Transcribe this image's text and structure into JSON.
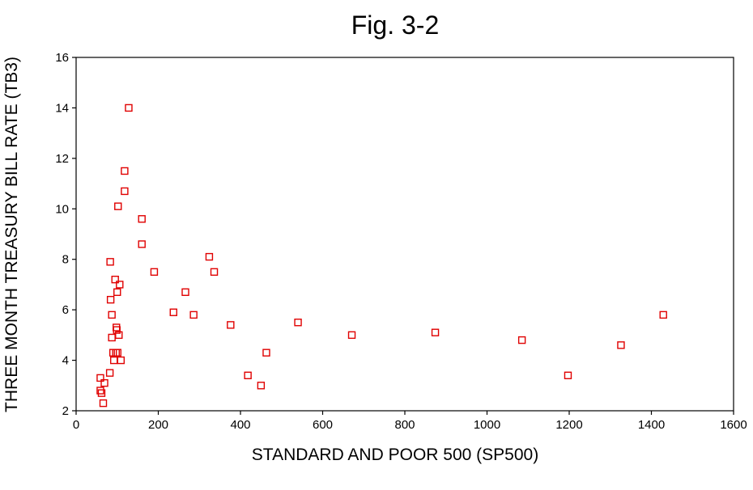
{
  "chart_data": {
    "type": "scatter",
    "title": "Fig. 3-2",
    "xlabel": "STANDARD AND POOR 500 (SP500)",
    "ylabel": "THREE MONTH TREASURY BILL RATE (TB3)",
    "xlim": [
      0,
      1600
    ],
    "ylim": [
      2,
      16
    ],
    "xticks": [
      0,
      200,
      400,
      600,
      800,
      1000,
      1200,
      1400,
      1600
    ],
    "yticks": [
      2,
      4,
      6,
      8,
      10,
      12,
      14,
      16
    ],
    "marker": "open-square",
    "marker_color": "#e00000",
    "grid": false,
    "series": [
      {
        "points": [
          [
            59,
            3.3
          ],
          [
            59,
            2.8
          ],
          [
            62,
            2.7
          ],
          [
            66,
            2.3
          ],
          [
            69,
            3.1
          ],
          [
            82,
            3.5
          ],
          [
            83,
            7.9
          ],
          [
            84,
            6.4
          ],
          [
            87,
            5.8
          ],
          [
            87,
            4.9
          ],
          [
            90,
            4.3
          ],
          [
            92,
            4.0
          ],
          [
            95,
            7.2
          ],
          [
            97,
            4.3
          ],
          [
            98,
            5.3
          ],
          [
            99,
            5.2
          ],
          [
            100,
            6.7
          ],
          [
            101,
            4.3
          ],
          [
            102,
            10.1
          ],
          [
            104,
            5.0
          ],
          [
            106,
            7.0
          ],
          [
            109,
            4.0
          ],
          [
            118,
            11.5
          ],
          [
            118,
            10.7
          ],
          [
            128,
            14.0
          ],
          [
            160,
            9.6
          ],
          [
            160,
            8.6
          ],
          [
            190,
            7.5
          ],
          [
            237,
            5.9
          ],
          [
            266,
            6.7
          ],
          [
            286,
            5.8
          ],
          [
            324,
            8.1
          ],
          [
            336,
            7.5
          ],
          [
            376,
            5.4
          ],
          [
            418,
            3.4
          ],
          [
            450,
            3.0
          ],
          [
            463,
            4.3
          ],
          [
            540,
            5.5
          ],
          [
            671,
            5.0
          ],
          [
            874,
            5.1
          ],
          [
            1085,
            4.8
          ],
          [
            1197,
            3.4
          ],
          [
            1326,
            4.6
          ],
          [
            1429,
            5.8
          ]
        ]
      }
    ]
  }
}
